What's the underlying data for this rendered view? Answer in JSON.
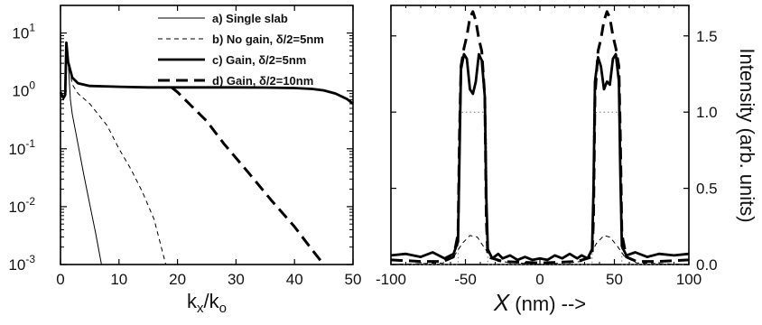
{
  "chart_data": [
    {
      "type": "line",
      "xlabel_main": "k",
      "xlabel_sub1": "x",
      "xlabel_mid": "/k",
      "xlabel_sub2": "o",
      "xlim": [
        0,
        50
      ],
      "ylim": [
        0.001,
        30
      ],
      "yscale": "log",
      "x_ticks": [
        "0",
        "10",
        "20",
        "30",
        "40",
        "50"
      ],
      "y_ticks": [
        {
          "base": "10",
          "exp": "1",
          "value": 10
        },
        {
          "base": "10",
          "exp": "0",
          "value": 1
        },
        {
          "base": "10",
          "exp": "-1",
          "value": 0.1
        },
        {
          "base": "10",
          "exp": "-2",
          "value": 0.01
        },
        {
          "base": "10",
          "exp": "-3",
          "value": 0.001
        }
      ],
      "legend_position": "top-right",
      "series": [
        {
          "name": "a) Single slab",
          "style": "thin-solid",
          "points": [
            [
              0,
              0.95
            ],
            [
              0.5,
              0.75
            ],
            [
              0.8,
              0.85
            ],
            [
              1,
              6.8
            ],
            [
              1.3,
              3.5
            ],
            [
              1.7,
              0.7
            ],
            [
              2,
              0.4
            ],
            [
              3,
              0.12
            ],
            [
              4,
              0.035
            ],
            [
              5,
              0.011
            ],
            [
              6,
              0.0035
            ],
            [
              7,
              0.001
            ]
          ]
        },
        {
          "name": "b) No gain, δ/2=5nm",
          "style": "thin-dashed",
          "points": [
            [
              0,
              0.95
            ],
            [
              0.5,
              0.75
            ],
            [
              0.8,
              0.85
            ],
            [
              1,
              6.8
            ],
            [
              1.3,
              3.5
            ],
            [
              2,
              1.3
            ],
            [
              3,
              0.9
            ],
            [
              5,
              0.6
            ],
            [
              8,
              0.25
            ],
            [
              10,
              0.1
            ],
            [
              12,
              0.045
            ],
            [
              14,
              0.018
            ],
            [
              16,
              0.006
            ],
            [
              18,
              0.001
            ]
          ]
        },
        {
          "name": "c) Gain, δ/2=5nm",
          "style": "thick-solid",
          "points": [
            [
              0,
              0.95
            ],
            [
              0.5,
              0.75
            ],
            [
              0.8,
              0.85
            ],
            [
              1,
              6.8
            ],
            [
              1.3,
              3.2
            ],
            [
              2,
              1.7
            ],
            [
              3,
              1.35
            ],
            [
              5,
              1.22
            ],
            [
              10,
              1.18
            ],
            [
              15,
              1.15
            ],
            [
              20,
              1.15
            ],
            [
              25,
              1.15
            ],
            [
              30,
              1.15
            ],
            [
              35,
              1.14
            ],
            [
              40,
              1.12
            ],
            [
              43,
              1.08
            ],
            [
              45,
              1.02
            ],
            [
              47,
              0.9
            ],
            [
              49,
              0.72
            ],
            [
              50,
              0.6
            ]
          ]
        },
        {
          "name": "d) Gain, δ/2=10nm",
          "style": "thick-dashed",
          "points": [
            [
              19,
              1.15
            ],
            [
              20,
              0.95
            ],
            [
              22,
              0.6
            ],
            [
              25,
              0.3
            ],
            [
              28,
              0.12
            ],
            [
              32,
              0.04
            ],
            [
              36,
              0.013
            ],
            [
              40,
              0.0045
            ],
            [
              43,
              0.0018
            ],
            [
              45,
              0.001
            ]
          ]
        }
      ]
    },
    {
      "type": "line",
      "xlabel_main": "X",
      "xlabel_rest": " (nm) -->",
      "ylabel": "Intensity (arb. units)",
      "xlim": [
        -100,
        100
      ],
      "ylim": [
        0,
        1.7
      ],
      "x_ticks": [
        "-100",
        "-50",
        "0",
        "50",
        "100"
      ],
      "y_ticks": [
        "0.0",
        "0.5",
        "1.0",
        "1.5"
      ],
      "series": [
        {
          "style": "thin-dotted",
          "points": [
            [
              -100,
              0
            ],
            [
              -55,
              0
            ],
            [
              -54,
              0.95
            ],
            [
              -52,
              1.0
            ],
            [
              -45,
              1.0
            ],
            [
              -38,
              1.0
            ],
            [
              -36,
              0.95
            ],
            [
              -35,
              0
            ],
            [
              35,
              0
            ],
            [
              36,
              0.95
            ],
            [
              38,
              1.0
            ],
            [
              45,
              1.0
            ],
            [
              52,
              1.0
            ],
            [
              54,
              0.95
            ],
            [
              55,
              0
            ],
            [
              100,
              0
            ]
          ]
        },
        {
          "style": "thin-dashed",
          "points": [
            [
              -100,
              0
            ],
            [
              -65,
              0.01
            ],
            [
              -58,
              0.05
            ],
            [
              -52,
              0.14
            ],
            [
              -47,
              0.19
            ],
            [
              -42,
              0.18
            ],
            [
              -38,
              0.12
            ],
            [
              -33,
              0.05
            ],
            [
              -28,
              0.02
            ],
            [
              -15,
              0.01
            ],
            [
              0,
              0
            ],
            [
              15,
              0.01
            ],
            [
              28,
              0.02
            ],
            [
              33,
              0.05
            ],
            [
              38,
              0.14
            ],
            [
              43,
              0.19
            ],
            [
              47,
              0.18
            ],
            [
              52,
              0.12
            ],
            [
              57,
              0.05
            ],
            [
              65,
              0.01
            ],
            [
              100,
              0
            ]
          ]
        },
        {
          "style": "thick-solid",
          "points": [
            [
              -100,
              0.06
            ],
            [
              -90,
              0.07
            ],
            [
              -80,
              0.05
            ],
            [
              -72,
              0.08
            ],
            [
              -64,
              0.04
            ],
            [
              -58,
              0.07
            ],
            [
              -55,
              0.15
            ],
            [
              -54,
              0.7
            ],
            [
              -53,
              1.28
            ],
            [
              -51,
              1.38
            ],
            [
              -49,
              1.35
            ],
            [
              -47,
              1.15
            ],
            [
              -45,
              1.12
            ],
            [
              -43,
              1.2
            ],
            [
              -41,
              1.38
            ],
            [
              -39,
              1.34
            ],
            [
              -37,
              1.1
            ],
            [
              -36,
              0.45
            ],
            [
              -35,
              0.1
            ],
            [
              -32,
              0.04
            ],
            [
              -28,
              0.07
            ],
            [
              -25,
              0.04
            ],
            [
              -20,
              0.06
            ],
            [
              -15,
              0.03
            ],
            [
              -10,
              0.05
            ],
            [
              -5,
              0.03
            ],
            [
              0,
              0.04
            ],
            [
              5,
              0.03
            ],
            [
              10,
              0.06
            ],
            [
              15,
              0.04
            ],
            [
              20,
              0.07
            ],
            [
              25,
              0.04
            ],
            [
              28,
              0.06
            ],
            [
              32,
              0.04
            ],
            [
              35,
              0.1
            ],
            [
              36,
              0.5
            ],
            [
              37,
              1.2
            ],
            [
              39,
              1.36
            ],
            [
              41,
              1.3
            ],
            [
              43,
              1.15
            ],
            [
              45,
              1.2
            ],
            [
              47,
              1.18
            ],
            [
              49,
              1.35
            ],
            [
              51,
              1.38
            ],
            [
              53,
              1.2
            ],
            [
              54,
              0.6
            ],
            [
              55,
              0.12
            ],
            [
              58,
              0.06
            ],
            [
              64,
              0.08
            ],
            [
              72,
              0.05
            ],
            [
              80,
              0.07
            ],
            [
              90,
              0.06
            ],
            [
              100,
              0.07
            ]
          ]
        },
        {
          "style": "thick-dashed",
          "points": [
            [
              -100,
              0.03
            ],
            [
              -80,
              0.02
            ],
            [
              -65,
              0.02
            ],
            [
              -58,
              0.05
            ],
            [
              -55,
              0.2
            ],
            [
              -54,
              0.85
            ],
            [
              -53,
              1.3
            ],
            [
              -51,
              1.42
            ],
            [
              -49,
              1.5
            ],
            [
              -47,
              1.62
            ],
            [
              -45,
              1.66
            ],
            [
              -43,
              1.6
            ],
            [
              -41,
              1.48
            ],
            [
              -39,
              1.4
            ],
            [
              -37,
              1.1
            ],
            [
              -36,
              0.3
            ],
            [
              -35,
              0.05
            ],
            [
              -25,
              0.02
            ],
            [
              0,
              0.01
            ],
            [
              25,
              0.02
            ],
            [
              35,
              0.05
            ],
            [
              36,
              0.3
            ],
            [
              37,
              1.1
            ],
            [
              39,
              1.4
            ],
            [
              41,
              1.48
            ],
            [
              43,
              1.6
            ],
            [
              45,
              1.66
            ],
            [
              47,
              1.62
            ],
            [
              49,
              1.5
            ],
            [
              51,
              1.42
            ],
            [
              53,
              1.3
            ],
            [
              54,
              0.85
            ],
            [
              55,
              0.2
            ],
            [
              58,
              0.05
            ],
            [
              65,
              0.02
            ],
            [
              80,
              0.02
            ],
            [
              100,
              0.03
            ]
          ]
        }
      ]
    }
  ]
}
